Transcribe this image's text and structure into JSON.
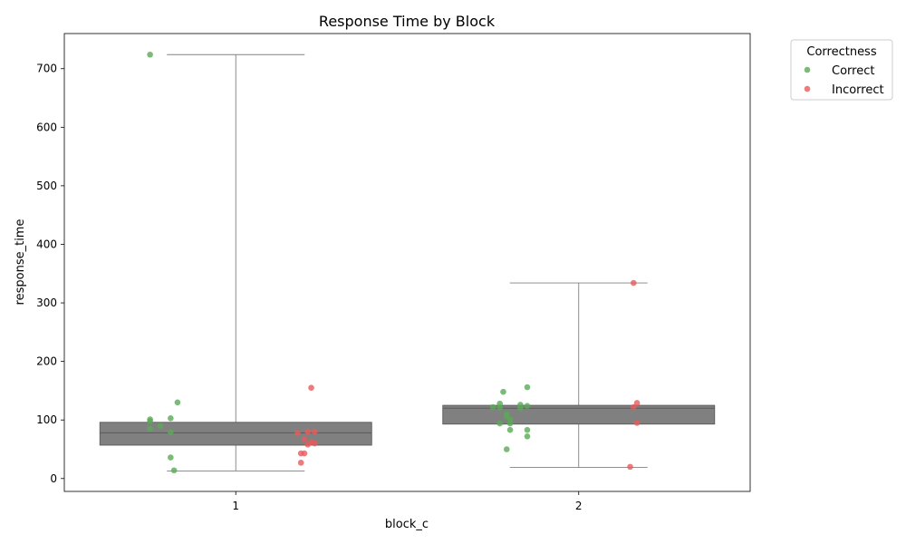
{
  "chart_data": {
    "type": "box",
    "title": "Response Time by Block",
    "xlabel": "block_c",
    "ylabel": "response_time",
    "categories": [
      "1",
      "2"
    ],
    "ylim": [
      -22,
      760
    ],
    "yticks": [
      0,
      100,
      200,
      300,
      400,
      500,
      600,
      700
    ],
    "grid": false,
    "boxes": [
      {
        "category": "1",
        "whisker_low": 13,
        "q1": 57,
        "median": 78,
        "q3": 96,
        "whisker_high": 724
      },
      {
        "category": "2",
        "whisker_low": 19,
        "q1": 93,
        "median": 120,
        "q3": 125,
        "whisker_high": 334
      }
    ],
    "legend": {
      "title": "Correctness",
      "position": "top-right-outside",
      "entries": [
        {
          "label": "Correct",
          "color": "#5aaa56"
        },
        {
          "label": "Incorrect",
          "color": "#e85a5a"
        }
      ]
    },
    "points": [
      {
        "category": "1",
        "group": "Correct",
        "offset": -0.25,
        "y": 724
      },
      {
        "category": "1",
        "group": "Correct",
        "offset": -0.17,
        "y": 130
      },
      {
        "category": "1",
        "group": "Correct",
        "offset": -0.19,
        "y": 103
      },
      {
        "category": "1",
        "group": "Correct",
        "offset": -0.25,
        "y": 101
      },
      {
        "category": "1",
        "group": "Correct",
        "offset": -0.25,
        "y": 98
      },
      {
        "category": "1",
        "group": "Correct",
        "offset": -0.22,
        "y": 90
      },
      {
        "category": "1",
        "group": "Correct",
        "offset": -0.25,
        "y": 85
      },
      {
        "category": "1",
        "group": "Correct",
        "offset": -0.19,
        "y": 79
      },
      {
        "category": "1",
        "group": "Correct",
        "offset": -0.19,
        "y": 36
      },
      {
        "category": "1",
        "group": "Correct",
        "offset": -0.18,
        "y": 14
      },
      {
        "category": "1",
        "group": "Incorrect",
        "offset": 0.22,
        "y": 155
      },
      {
        "category": "1",
        "group": "Incorrect",
        "offset": 0.21,
        "y": 80
      },
      {
        "category": "1",
        "group": "Incorrect",
        "offset": 0.23,
        "y": 80
      },
      {
        "category": "1",
        "group": "Incorrect",
        "offset": 0.18,
        "y": 78
      },
      {
        "category": "1",
        "group": "Incorrect",
        "offset": 0.2,
        "y": 67
      },
      {
        "category": "1",
        "group": "Incorrect",
        "offset": 0.22,
        "y": 62
      },
      {
        "category": "1",
        "group": "Incorrect",
        "offset": 0.23,
        "y": 60
      },
      {
        "category": "1",
        "group": "Incorrect",
        "offset": 0.21,
        "y": 58
      },
      {
        "category": "1",
        "group": "Incorrect",
        "offset": 0.19,
        "y": 43
      },
      {
        "category": "1",
        "group": "Incorrect",
        "offset": 0.2,
        "y": 43
      },
      {
        "category": "1",
        "group": "Incorrect",
        "offset": 0.19,
        "y": 27
      },
      {
        "category": "2",
        "group": "Correct",
        "offset": -0.15,
        "y": 156
      },
      {
        "category": "2",
        "group": "Correct",
        "offset": -0.22,
        "y": 148
      },
      {
        "category": "2",
        "group": "Correct",
        "offset": -0.23,
        "y": 128
      },
      {
        "category": "2",
        "group": "Correct",
        "offset": -0.17,
        "y": 126
      },
      {
        "category": "2",
        "group": "Correct",
        "offset": -0.15,
        "y": 124
      },
      {
        "category": "2",
        "group": "Correct",
        "offset": -0.25,
        "y": 122
      },
      {
        "category": "2",
        "group": "Correct",
        "offset": -0.23,
        "y": 121
      },
      {
        "category": "2",
        "group": "Correct",
        "offset": -0.17,
        "y": 120
      },
      {
        "category": "2",
        "group": "Correct",
        "offset": -0.21,
        "y": 110
      },
      {
        "category": "2",
        "group": "Correct",
        "offset": -0.21,
        "y": 106
      },
      {
        "category": "2",
        "group": "Correct",
        "offset": -0.2,
        "y": 101
      },
      {
        "category": "2",
        "group": "Correct",
        "offset": -0.23,
        "y": 94
      },
      {
        "category": "2",
        "group": "Correct",
        "offset": -0.2,
        "y": 94
      },
      {
        "category": "2",
        "group": "Correct",
        "offset": -0.15,
        "y": 83
      },
      {
        "category": "2",
        "group": "Correct",
        "offset": -0.2,
        "y": 83
      },
      {
        "category": "2",
        "group": "Correct",
        "offset": -0.15,
        "y": 72
      },
      {
        "category": "2",
        "group": "Correct",
        "offset": -0.21,
        "y": 50
      },
      {
        "category": "2",
        "group": "Incorrect",
        "offset": 0.16,
        "y": 334
      },
      {
        "category": "2",
        "group": "Incorrect",
        "offset": 0.17,
        "y": 129
      },
      {
        "category": "2",
        "group": "Incorrect",
        "offset": 0.16,
        "y": 122
      },
      {
        "category": "2",
        "group": "Incorrect",
        "offset": 0.17,
        "y": 95
      },
      {
        "category": "2",
        "group": "Incorrect",
        "offset": 0.15,
        "y": 20
      }
    ]
  }
}
